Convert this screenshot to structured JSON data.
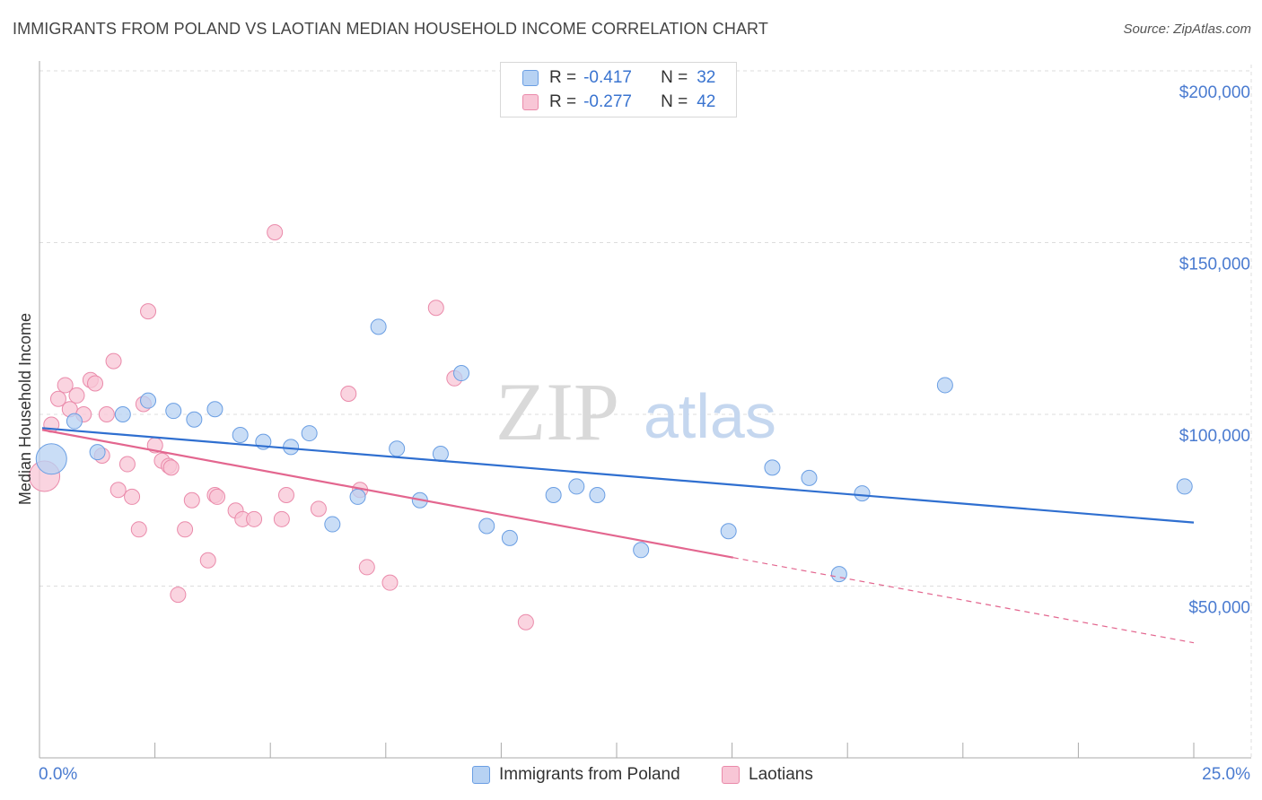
{
  "title": "IMMIGRANTS FROM POLAND VS LAOTIAN MEDIAN HOUSEHOLD INCOME CORRELATION CHART",
  "source": "Source: ZipAtlas.com",
  "watermark": {
    "zip": "ZIP",
    "atlas": "atlas"
  },
  "legend": {
    "poland": {
      "r_label": "R =",
      "r_value": "-0.417",
      "n_label": "N =",
      "n_value": "32"
    },
    "laotians": {
      "r_label": "R =",
      "r_value": "-0.277",
      "n_label": "N =",
      "n_value": "42"
    }
  },
  "colors": {
    "poland_fill": "#b7d2f3",
    "poland_stroke": "#6a9ee3",
    "poland_line": "#2f6fd0",
    "laotians_fill": "#f8c6d6",
    "laotians_stroke": "#ea8aaa",
    "laotians_line": "#e3668f",
    "grid": "#dddddd",
    "axis": "#999999"
  },
  "chart_data": {
    "type": "scatter",
    "title": "IMMIGRANTS FROM POLAND VS LAOTIAN MEDIAN HOUSEHOLD INCOME CORRELATION CHART",
    "xlabel": "",
    "ylabel": "Median Household Income",
    "xlim": [
      0,
      25
    ],
    "ylim": [
      0,
      210000
    ],
    "x_tick_labels": [
      "0.0%",
      "25.0%"
    ],
    "y_ticks": [
      50000,
      100000,
      150000,
      200000
    ],
    "y_tick_labels": [
      "$50,000",
      "$100,000",
      "$150,000",
      "$200,000"
    ],
    "grid": true,
    "legend_position": "bottom",
    "series": [
      {
        "name": "Immigrants from Poland",
        "r": -0.417,
        "n": 32,
        "trend": {
          "x0": 0,
          "y0": 96000,
          "x1": 25,
          "y1": 68500,
          "dashed_from": null
        },
        "points": [
          {
            "x": 0.2,
            "y": 87000,
            "big": true
          },
          {
            "x": 0.7,
            "y": 98000
          },
          {
            "x": 1.2,
            "y": 89000
          },
          {
            "x": 1.75,
            "y": 100000
          },
          {
            "x": 2.3,
            "y": 104000
          },
          {
            "x": 2.85,
            "y": 101000
          },
          {
            "x": 3.3,
            "y": 98500
          },
          {
            "x": 3.75,
            "y": 101500
          },
          {
            "x": 4.3,
            "y": 94000
          },
          {
            "x": 4.8,
            "y": 92000
          },
          {
            "x": 5.4,
            "y": 90500
          },
          {
            "x": 5.8,
            "y": 94500
          },
          {
            "x": 6.3,
            "y": 68000
          },
          {
            "x": 6.85,
            "y": 76000
          },
          {
            "x": 7.3,
            "y": 125500
          },
          {
            "x": 7.7,
            "y": 90000
          },
          {
            "x": 8.2,
            "y": 75000
          },
          {
            "x": 8.65,
            "y": 88500
          },
          {
            "x": 9.1,
            "y": 112000
          },
          {
            "x": 9.65,
            "y": 67500
          },
          {
            "x": 10.15,
            "y": 64000
          },
          {
            "x": 11.1,
            "y": 76500
          },
          {
            "x": 11.6,
            "y": 79000
          },
          {
            "x": 12.05,
            "y": 76500
          },
          {
            "x": 13.0,
            "y": 60500
          },
          {
            "x": 14.9,
            "y": 66000
          },
          {
            "x": 15.85,
            "y": 84500
          },
          {
            "x": 16.65,
            "y": 81500
          },
          {
            "x": 17.3,
            "y": 53500
          },
          {
            "x": 17.8,
            "y": 77000
          },
          {
            "x": 19.6,
            "y": 108500
          },
          {
            "x": 24.8,
            "y": 79000
          }
        ]
      },
      {
        "name": "Laotians",
        "r": -0.277,
        "n": 42,
        "trend": {
          "x0": 0,
          "y0": 95500,
          "x1": 25,
          "y1": 33500,
          "dashed_from": 15.0
        },
        "points": [
          {
            "x": 0.05,
            "y": 82000,
            "big": true
          },
          {
            "x": 0.2,
            "y": 97000
          },
          {
            "x": 0.35,
            "y": 104500
          },
          {
            "x": 0.5,
            "y": 108500
          },
          {
            "x": 0.6,
            "y": 101500
          },
          {
            "x": 0.75,
            "y": 105500
          },
          {
            "x": 0.9,
            "y": 100000
          },
          {
            "x": 1.05,
            "y": 110000
          },
          {
            "x": 1.15,
            "y": 109000
          },
          {
            "x": 1.3,
            "y": 88000
          },
          {
            "x": 1.4,
            "y": 100000
          },
          {
            "x": 1.55,
            "y": 115500
          },
          {
            "x": 1.65,
            "y": 78000
          },
          {
            "x": 1.85,
            "y": 85500
          },
          {
            "x": 1.95,
            "y": 76000
          },
          {
            "x": 2.1,
            "y": 66500
          },
          {
            "x": 2.2,
            "y": 103000
          },
          {
            "x": 2.3,
            "y": 130000
          },
          {
            "x": 2.45,
            "y": 91000
          },
          {
            "x": 2.6,
            "y": 86500
          },
          {
            "x": 2.75,
            "y": 85000
          },
          {
            "x": 2.8,
            "y": 84500
          },
          {
            "x": 2.95,
            "y": 47500
          },
          {
            "x": 3.1,
            "y": 66500
          },
          {
            "x": 3.25,
            "y": 75000
          },
          {
            "x": 3.6,
            "y": 57500
          },
          {
            "x": 3.75,
            "y": 76500
          },
          {
            "x": 3.8,
            "y": 76000
          },
          {
            "x": 4.2,
            "y": 72000
          },
          {
            "x": 4.35,
            "y": 69500
          },
          {
            "x": 4.6,
            "y": 69500
          },
          {
            "x": 5.05,
            "y": 153000
          },
          {
            "x": 5.2,
            "y": 69500
          },
          {
            "x": 5.3,
            "y": 76500
          },
          {
            "x": 6.0,
            "y": 72500
          },
          {
            "x": 6.65,
            "y": 106000
          },
          {
            "x": 6.9,
            "y": 78000
          },
          {
            "x": 7.05,
            "y": 55500
          },
          {
            "x": 7.55,
            "y": 51000
          },
          {
            "x": 8.55,
            "y": 131000
          },
          {
            "x": 8.95,
            "y": 110500
          },
          {
            "x": 10.5,
            "y": 39500
          }
        ]
      }
    ]
  },
  "bottom_legend": {
    "poland_label": "Immigrants from Poland",
    "laotians_label": "Laotians"
  }
}
